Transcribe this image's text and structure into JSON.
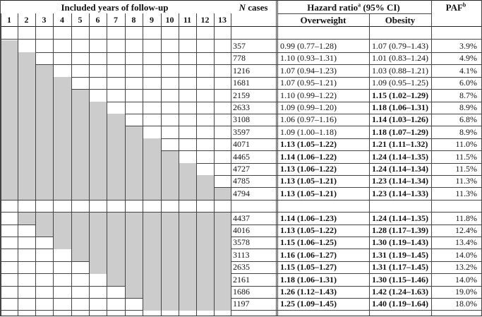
{
  "header": {
    "years_title": "Included years of follow-up",
    "n_cases": "N cases",
    "n_cases_italic": "N",
    "n_cases_rest": " cases",
    "hr_title": "Hazard ratio",
    "hr_sup": "a",
    "hr_ci": " (95% CI)",
    "paf": "PAF",
    "paf_sup": "b",
    "overweight": "Overweight",
    "obesity": "Obesity",
    "years": [
      "1",
      "2",
      "3",
      "4",
      "5",
      "6",
      "7",
      "8",
      "9",
      "10",
      "11",
      "12",
      "13"
    ]
  },
  "rows": [
    {
      "start": 1,
      "end": 1,
      "n": "357",
      "ow": "0.99 (0.77–1.28)",
      "ow_bold": false,
      "ob": "1.07 (0.79–1.43)",
      "ob_bold": false,
      "paf": "3.9%"
    },
    {
      "start": 1,
      "end": 2,
      "n": "778",
      "ow": "1.10 (0.93–1.31)",
      "ow_bold": false,
      "ob": "1.01 (0.83–1.24)",
      "ob_bold": false,
      "paf": "4.9%"
    },
    {
      "start": 1,
      "end": 3,
      "n": "1216",
      "ow": "1.07 (0.94–1.23)",
      "ow_bold": false,
      "ob": "1.03 (0.88–1.21)",
      "ob_bold": false,
      "paf": "4.1%"
    },
    {
      "start": 1,
      "end": 4,
      "n": "1681",
      "ow": "1.07 (0.95–1.21)",
      "ow_bold": false,
      "ob": "1.09 (0.95–1.25)",
      "ob_bold": false,
      "paf": "6.0%"
    },
    {
      "start": 1,
      "end": 5,
      "n": "2159",
      "ow": "1.10 (0.99–1.22)",
      "ow_bold": false,
      "ob": "1.15 (1.02–1.29)",
      "ob_bold": true,
      "paf": "8.7%"
    },
    {
      "start": 1,
      "end": 6,
      "n": "2633",
      "ow": "1.09 (0.99–1.20)",
      "ow_bold": false,
      "ob": "1.18 (1.06–1.31)",
      "ob_bold": true,
      "paf": "8.9%"
    },
    {
      "start": 1,
      "end": 7,
      "n": "3108",
      "ow": "1.06 (0.97–1.16)",
      "ow_bold": false,
      "ob": "1.14 (1.03–1.26)",
      "ob_bold": true,
      "paf": "6.8%"
    },
    {
      "start": 1,
      "end": 8,
      "n": "3597",
      "ow": "1.09 (1.00–1.18)",
      "ow_bold": false,
      "ob": "1.18 (1.07–1.29)",
      "ob_bold": true,
      "paf": "8.9%"
    },
    {
      "start": 1,
      "end": 9,
      "n": "4071",
      "ow": "1.13 (1.05–1.22)",
      "ow_bold": true,
      "ob": "1.21 (1.11–1.32)",
      "ob_bold": true,
      "paf": "11.0%"
    },
    {
      "start": 1,
      "end": 10,
      "n": "4465",
      "ow": "1.14 (1.06–1.22)",
      "ow_bold": true,
      "ob": "1.24 (1.14–1.35)",
      "ob_bold": true,
      "paf": "11.5%"
    },
    {
      "start": 1,
      "end": 11,
      "n": "4727",
      "ow": "1.13 (1.06–1.22)",
      "ow_bold": true,
      "ob": "1.24 (1.14–1.34)",
      "ob_bold": true,
      "paf": "11.5%"
    },
    {
      "start": 1,
      "end": 12,
      "n": "4785",
      "ow": "1.13 (1.05–1.21)",
      "ow_bold": true,
      "ob": "1.23 (1.14–1.34)",
      "ob_bold": true,
      "paf": "11.3%"
    },
    {
      "start": 1,
      "end": 13,
      "n": "4794",
      "ow": "1.13 (1.05–1.21)",
      "ow_bold": true,
      "ob": "1.23 (1.14–1.33)",
      "ob_bold": true,
      "paf": "11.3%"
    },
    {
      "blank": true
    },
    {
      "start": 2,
      "end": 13,
      "n": "4437",
      "ow": "1.14 (1.06–1.23)",
      "ow_bold": true,
      "ob": "1.24 (1.14–1.35)",
      "ob_bold": true,
      "paf": "11.8%"
    },
    {
      "start": 3,
      "end": 13,
      "n": "4016",
      "ow": "1.13 (1.05–1.22)",
      "ow_bold": true,
      "ob": "1.28 (1.17–1.39)",
      "ob_bold": true,
      "paf": "12.4%"
    },
    {
      "start": 4,
      "end": 13,
      "n": "3578",
      "ow": "1.15 (1.06–1.25)",
      "ow_bold": true,
      "ob": "1.30 (1.19–1.43)",
      "ob_bold": true,
      "paf": "13.4%"
    },
    {
      "start": 5,
      "end": 13,
      "n": "3113",
      "ow": "1.16 (1.06–1.27)",
      "ow_bold": true,
      "ob": "1.31 (1.19–1.45)",
      "ob_bold": true,
      "paf": "14.0%"
    },
    {
      "start": 6,
      "end": 13,
      "n": "2635",
      "ow": "1.15 (1.05–1.27)",
      "ow_bold": true,
      "ob": "1.31 (1.17–1.45)",
      "ob_bold": true,
      "paf": "13.2%"
    },
    {
      "start": 7,
      "end": 13,
      "n": "2161",
      "ow": "1.18 (1.06–1.31)",
      "ow_bold": true,
      "ob": "1.30 (1.15–1.46)",
      "ob_bold": true,
      "paf": "14.0%"
    },
    {
      "start": 8,
      "end": 13,
      "n": "1686",
      "ow": "1.26 (1.12–1.43)",
      "ow_bold": true,
      "ob": "1.42 (1.24–1.63)",
      "ob_bold": true,
      "paf": "19.0%"
    },
    {
      "start": 9,
      "end": 13,
      "n": "1197",
      "ow": "1.25 (1.09–1.45)",
      "ow_bold": true,
      "ob": "1.40 (1.19–1.64)",
      "ob_bold": true,
      "paf": "18.0%"
    }
  ]
}
